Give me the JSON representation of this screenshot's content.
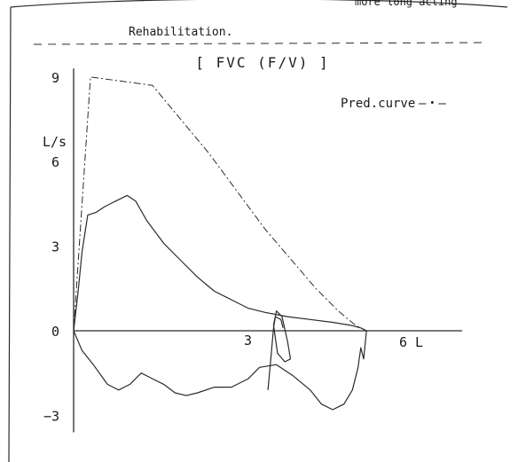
{
  "header": {
    "clipped_text": "more long acting",
    "note": "Rehabilitation."
  },
  "chart_data": {
    "type": "line",
    "title": "[ FVC (F/V) ]",
    "ylabel": "L/s",
    "x_end_label": "6 L",
    "xlim": [
      0,
      6.9
    ],
    "ylim": [
      -3.6,
      9.3
    ],
    "y_ticks": [
      {
        "value": 9,
        "label": "9"
      },
      {
        "value": 6,
        "label": "6"
      },
      {
        "value": 3,
        "label": "3"
      },
      {
        "value": 0,
        "label": "0"
      },
      {
        "value": -3,
        "label": "−3"
      }
    ],
    "x_ticks": [
      {
        "value": 3,
        "label": "3"
      }
    ],
    "legend": {
      "label": "Pred.curve",
      "symbol": "—・—",
      "position": "top-right"
    },
    "series": [
      {
        "name": "Pred.curve",
        "style": "dash-dot",
        "points": [
          [
            0,
            0
          ],
          [
            0.3,
            9
          ],
          [
            1.4,
            8.7
          ],
          [
            2.4,
            6.3
          ],
          [
            3.4,
            3.6
          ],
          [
            4.3,
            1.5
          ],
          [
            4.7,
            0.7
          ],
          [
            5,
            0.2
          ],
          [
            5.2,
            0
          ]
        ]
      },
      {
        "style": "solid",
        "points": [
          [
            0,
            0
          ],
          [
            0.08,
            1.4
          ],
          [
            0.15,
            2.8
          ],
          [
            0.25,
            4.1
          ],
          [
            0.4,
            4.2
          ],
          [
            0.55,
            4.4
          ],
          [
            0.75,
            4.6
          ],
          [
            0.95,
            4.8
          ],
          [
            1.1,
            4.6
          ],
          [
            1.3,
            3.9
          ],
          [
            1.6,
            3.1
          ],
          [
            1.9,
            2.5
          ],
          [
            2.2,
            1.9
          ],
          [
            2.5,
            1.4
          ],
          [
            2.8,
            1.1
          ],
          [
            3.1,
            0.8
          ],
          [
            3.4,
            0.65
          ],
          [
            3.8,
            0.5
          ],
          [
            4.2,
            0.4
          ],
          [
            4.6,
            0.3
          ],
          [
            4.9,
            0.2
          ],
          [
            5.1,
            0.1
          ],
          [
            5.2,
            0
          ]
        ]
      },
      {
        "style": "solid",
        "points": [
          [
            0,
            0
          ],
          [
            0.15,
            -0.7
          ],
          [
            0.35,
            -1.2
          ],
          [
            0.6,
            -1.9
          ],
          [
            0.8,
            -2.1
          ],
          [
            1,
            -1.9
          ],
          [
            1.2,
            -1.5
          ],
          [
            1.4,
            -1.7
          ],
          [
            1.6,
            -1.9
          ],
          [
            1.8,
            -2.2
          ],
          [
            2,
            -2.3
          ],
          [
            2.2,
            -2.2
          ],
          [
            2.5,
            -2
          ],
          [
            2.8,
            -2
          ],
          [
            3.1,
            -1.7
          ],
          [
            3.3,
            -1.3
          ],
          [
            3.6,
            -1.2
          ],
          [
            3.9,
            -1.6
          ],
          [
            4.2,
            -2.1
          ],
          [
            4.4,
            -2.6
          ],
          [
            4.6,
            -2.8
          ],
          [
            4.8,
            -2.6
          ],
          [
            4.95,
            -2.1
          ],
          [
            5.05,
            -1.3
          ],
          [
            5.1,
            -0.6
          ],
          [
            5.15,
            -1
          ],
          [
            5.2,
            0
          ]
        ]
      },
      {
        "style": "solid",
        "points": [
          [
            3.45,
            -2.1
          ],
          [
            3.5,
            -1
          ],
          [
            3.55,
            0.1
          ],
          [
            3.6,
            0.7
          ],
          [
            3.7,
            0.5
          ],
          [
            3.8,
            -0.4
          ],
          [
            3.85,
            -1
          ],
          [
            3.75,
            -1.1
          ],
          [
            3.62,
            -0.8
          ],
          [
            3.55,
            0.2
          ],
          [
            3.58,
            0.5
          ],
          [
            3.68,
            0.4
          ],
          [
            3.72,
            0.1
          ]
        ]
      }
    ]
  }
}
